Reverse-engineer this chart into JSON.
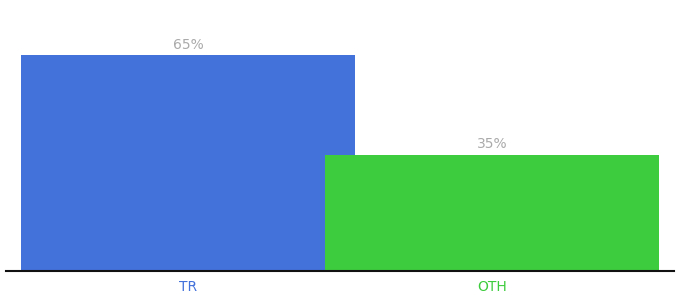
{
  "categories": [
    "TR",
    "OTH"
  ],
  "values": [
    65,
    35
  ],
  "bar_colors": [
    "#4472db",
    "#3dcc3d"
  ],
  "label_texts": [
    "65%",
    "35%"
  ],
  "background_color": "#ffffff",
  "ylim": [
    0,
    80
  ],
  "bar_width": 0.55,
  "label_fontsize": 10,
  "tick_fontsize": 10,
  "label_color": "#aaaaaa",
  "tick_color": "#4472db",
  "tick_color_oth": "#3dcc3d",
  "spine_color": "#111111"
}
